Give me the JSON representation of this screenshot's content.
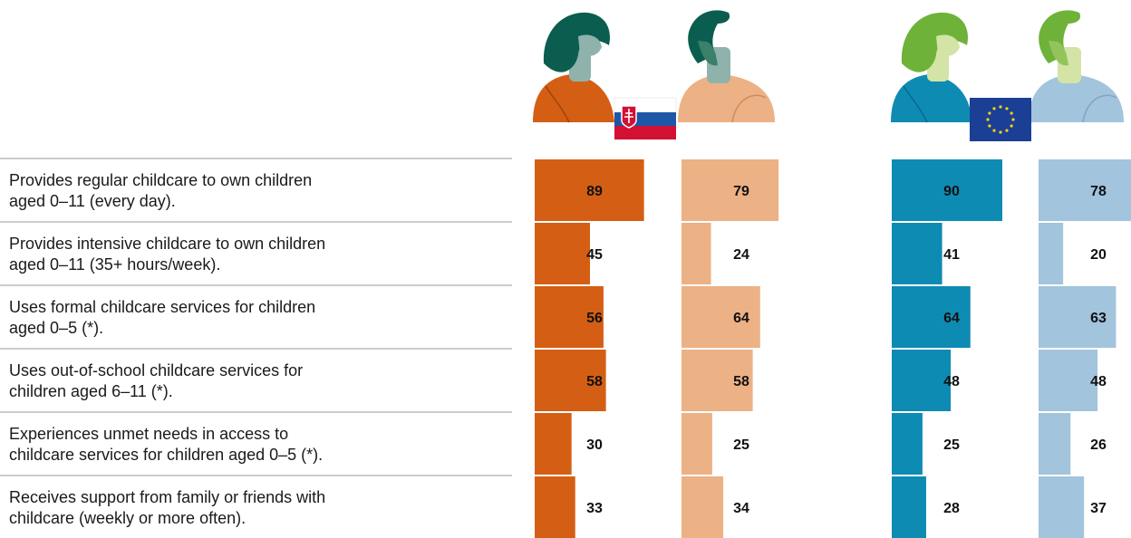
{
  "chart_data": {
    "type": "bar",
    "categories": [
      [
        "Provides regular childcare to own children",
        "aged 0–11 (every day)."
      ],
      [
        "Provides intensive childcare to own children",
        "aged 0–11 (35+ hours/week)."
      ],
      [
        "Uses formal childcare services for children",
        "aged 0–5 (*)."
      ],
      [
        "Uses out-of-school childcare services for",
        "children aged 6–11 (*)."
      ],
      [
        "Experiences unmet needs in access to",
        "childcare services for children aged 0–5 (*)."
      ],
      [
        "Receives support from family or friends with",
        "childcare (weekly or more often)."
      ]
    ],
    "series": [
      {
        "group": "Slovakia",
        "person": "women",
        "color": "#d45f14",
        "values": [
          89,
          45,
          56,
          58,
          30,
          33
        ]
      },
      {
        "group": "Slovakia",
        "person": "men",
        "color": "#ecb185",
        "values": [
          79,
          24,
          64,
          58,
          25,
          34
        ]
      },
      {
        "group": "EU",
        "person": "women",
        "color": "#0e8bb3",
        "values": [
          90,
          41,
          64,
          48,
          25,
          28
        ]
      },
      {
        "group": "EU",
        "person": "men",
        "color": "#a2c4dd",
        "values": [
          78,
          20,
          63,
          48,
          26,
          37
        ]
      }
    ],
    "xlim": [
      0,
      100
    ],
    "grid": false,
    "legend": "pictograms above columns",
    "icons": [
      "woman-figure-icon",
      "man-figure-icon",
      "slovakia-flag-icon",
      "eu-flag-icon"
    ],
    "colors": {
      "sk_women_hair": "#0b5e4f",
      "sk_men_hair": "#0b5e4f",
      "sk_skin": "#8fb2ad",
      "sk_beard": "#3c7f6a",
      "eu_women_hair": "#6fb23a",
      "eu_men_hair": "#6fb23a",
      "eu_skin": "#d4e3a6",
      "eu_beard": "#93c45b",
      "sk_flag_white": "#ffffff",
      "sk_flag_blue": "#1e57a6",
      "sk_flag_red": "#d21034",
      "eu_flag_blue": "#1b3f94",
      "eu_flag_stars": "#f5d215"
    }
  }
}
